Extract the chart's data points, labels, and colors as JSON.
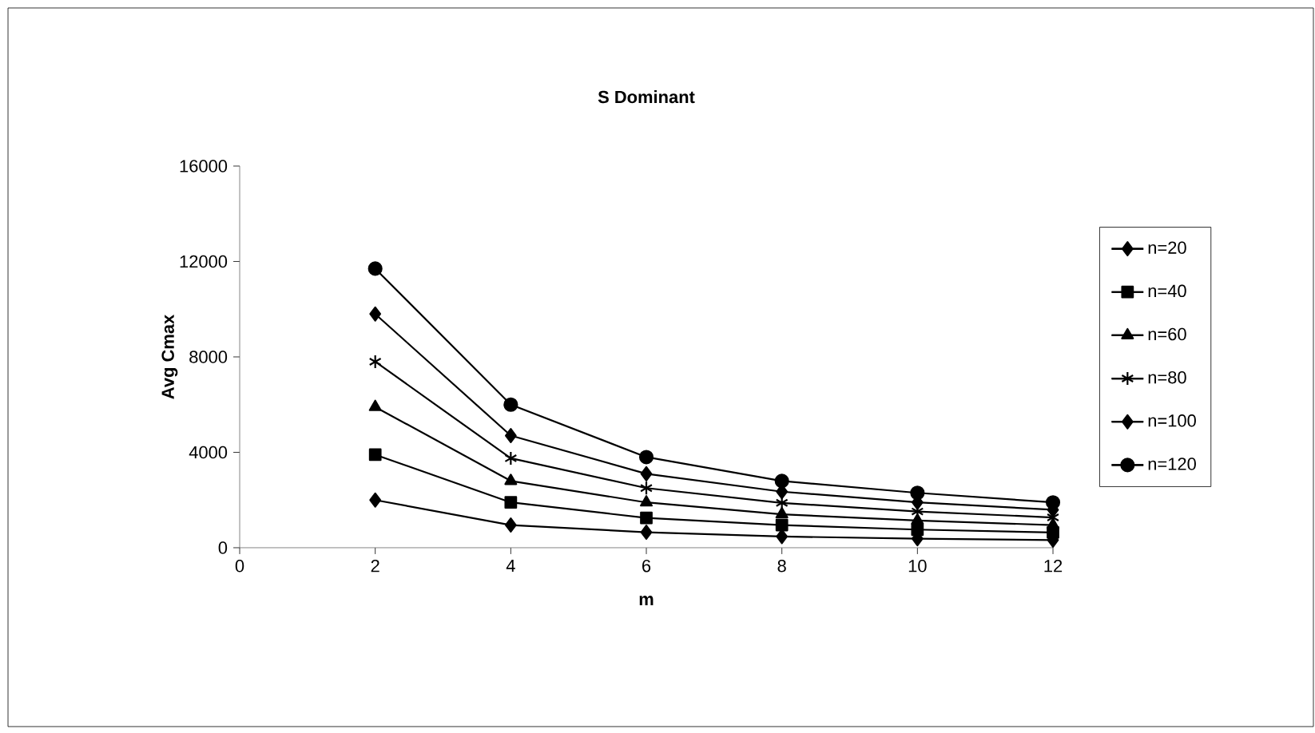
{
  "chart_data": {
    "type": "line",
    "title": "S Dominant",
    "xlabel": "m",
    "ylabel": "Avg Cmax",
    "x": [
      2,
      4,
      6,
      8,
      10,
      12
    ],
    "series": [
      {
        "name": "n=20",
        "color": "#000000",
        "marker": "diamond",
        "values": [
          2000,
          950,
          650,
          470,
          380,
          320
        ]
      },
      {
        "name": "n=40",
        "color": "#000000",
        "marker": "square",
        "values": [
          3900,
          1900,
          1250,
          950,
          760,
          640
        ]
      },
      {
        "name": "n=60",
        "color": "#000000",
        "marker": "triangle",
        "values": [
          5900,
          2800,
          1900,
          1400,
          1140,
          950
        ]
      },
      {
        "name": "n=80",
        "color": "#000000",
        "marker": "cross",
        "values": [
          7800,
          3750,
          2500,
          1880,
          1520,
          1270
        ]
      },
      {
        "name": "n=100",
        "color": "#000000",
        "marker": "diamond",
        "values": [
          9800,
          4700,
          3100,
          2350,
          1900,
          1590
        ]
      },
      {
        "name": "n=120",
        "color": "#000000",
        "marker": "circle",
        "values": [
          11700,
          6000,
          3800,
          2800,
          2300,
          1900
        ]
      }
    ],
    "xlim": [
      0,
      12
    ],
    "xticks": [
      0,
      2,
      4,
      6,
      8,
      10,
      12
    ],
    "ylim": [
      0,
      16000
    ],
    "yticks": [
      0,
      4000,
      8000,
      12000,
      16000
    ],
    "grid": false,
    "legend": "right",
    "line_style": "solid"
  }
}
